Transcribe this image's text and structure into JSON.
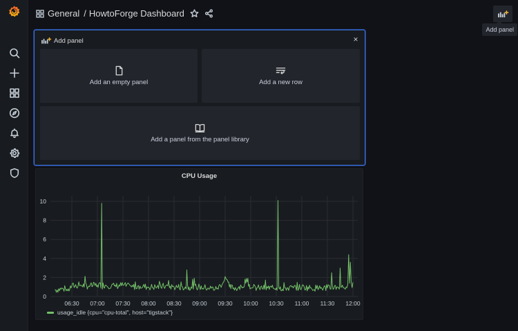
{
  "topbar": {
    "breadcrumb_folder": "General",
    "breadcrumb_sep": "/",
    "dashboard_title": "HowtoForge Dashboard",
    "add_panel_tooltip": "Add panel",
    "icons": [
      "dashboards-grid-icon",
      "star-icon",
      "share-icon",
      "add-panel-icon"
    ]
  },
  "sidebar": {
    "logo": "grafana-logo",
    "items": [
      {
        "name": "search",
        "icon": "search-icon"
      },
      {
        "name": "create",
        "icon": "plus-icon"
      },
      {
        "name": "dashboards",
        "icon": "dashboards-grid-icon"
      },
      {
        "name": "explore",
        "icon": "compass-icon"
      },
      {
        "name": "alerting",
        "icon": "bell-icon"
      },
      {
        "name": "configuration",
        "icon": "gear-icon"
      },
      {
        "name": "server-admin",
        "icon": "shield-icon"
      }
    ]
  },
  "add_panel": {
    "title": "Add panel",
    "close_label": "×",
    "options": [
      {
        "label": "Add an empty panel",
        "icon": "file-icon"
      },
      {
        "label": "Add a new row",
        "icon": "row-icon"
      },
      {
        "label": "Add a panel from the panel library",
        "icon": "book-icon"
      }
    ]
  },
  "colors": {
    "accent_blue": "#3d71d9",
    "series_green": "#73bf69",
    "brand_orange": "#f46800",
    "background": "#111217",
    "panel": "#181b1f"
  },
  "cpu_panel": {
    "title": "CPU Usage",
    "legend": "usage_idle {cpu=\"cpu-total\", host=\"tigstack\"}"
  },
  "chart_data": {
    "type": "line",
    "title": "CPU Usage",
    "xlabel": "",
    "ylabel": "",
    "ylim": [
      0,
      10
    ],
    "yticks": [
      0,
      2,
      4,
      6,
      8,
      10
    ],
    "xticks": [
      "06:30",
      "07:00",
      "07:30",
      "08:00",
      "08:30",
      "09:00",
      "09:30",
      "10:00",
      "10:30",
      "11:00",
      "11:30",
      "12:00"
    ],
    "grid": true,
    "legend_position": "bottom-left",
    "series": [
      {
        "name": "usage_idle {cpu=\"cpu-total\", host=\"tigstack\"}",
        "color": "#73bf69",
        "x": [
          "06:10",
          "06:20",
          "06:25",
          "06:30",
          "06:40",
          "06:50",
          "07:00",
          "07:05",
          "07:10",
          "07:20",
          "07:30",
          "07:40",
          "07:50",
          "08:00",
          "08:10",
          "08:20",
          "08:30",
          "08:40",
          "08:45",
          "08:50",
          "09:00",
          "09:10",
          "09:20",
          "09:28",
          "09:30",
          "09:35",
          "09:40",
          "09:50",
          "09:55",
          "10:00",
          "10:10",
          "10:20",
          "10:30",
          "10:32",
          "10:40",
          "10:50",
          "11:00",
          "11:10",
          "11:20",
          "11:30",
          "11:35",
          "11:42",
          "11:45",
          "11:52",
          "11:55",
          "11:57",
          "12:00"
        ],
        "values": [
          0.7,
          0.8,
          0.6,
          1.1,
          1.2,
          1.1,
          1.2,
          9.8,
          1.2,
          1.1,
          1.2,
          1.0,
          1.1,
          1.0,
          1.0,
          1.1,
          1.0,
          1.0,
          2.8,
          1.0,
          1.0,
          0.9,
          0.8,
          1.5,
          2.1,
          1.0,
          0.9,
          0.9,
          1.9,
          0.9,
          0.9,
          0.9,
          0.9,
          10.1,
          0.9,
          0.9,
          1.0,
          0.9,
          0.9,
          0.9,
          2.5,
          1.0,
          3.0,
          1.0,
          4.4,
          3.6,
          1.5
        ]
      }
    ]
  }
}
